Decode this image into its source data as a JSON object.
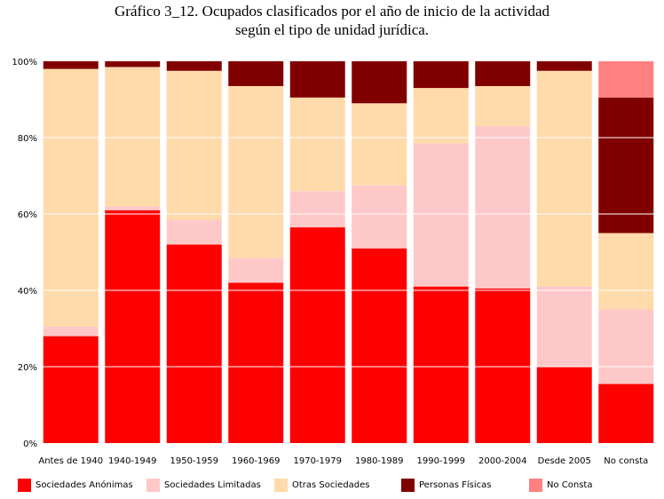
{
  "chart_data": {
    "type": "bar",
    "stacked": true,
    "normalized": true,
    "title": "Gráfico 3_12. Ocupados clasificados por el año de inicio de la actividad",
    "subtitle": "según el tipo de unidad jurídica.",
    "categories": [
      "Antes de 1940",
      "1940-1949",
      "1950-1959",
      "1960-1969",
      "1970-1979",
      "1980-1989",
      "1990-1999",
      "2000-2004",
      "Desde 2005",
      "No consta"
    ],
    "ylim": [
      0,
      100
    ],
    "yticks": [
      "0%",
      "20%",
      "40%",
      "60%",
      "80%",
      "100%"
    ],
    "grid": true,
    "legend_position": "bottom",
    "series": [
      {
        "name": "Sociedades Anónimas",
        "color": "#ff0000",
        "values": [
          28,
          61,
          52,
          42,
          56.5,
          51,
          41,
          40.5,
          20,
          15.5
        ]
      },
      {
        "name": "Sociedades Limitadas",
        "color": "#ffc8c8",
        "values": [
          2.5,
          1,
          6.5,
          6.5,
          9.5,
          16.5,
          37.5,
          42.5,
          21,
          19.5
        ]
      },
      {
        "name": "Otras Sociedades",
        "color": "#ffdaaa",
        "values": [
          67.5,
          36.5,
          39,
          45,
          24.5,
          21.5,
          14.5,
          10.5,
          56.5,
          20
        ]
      },
      {
        "name": "Personas Físicas",
        "color": "#800000",
        "values": [
          2,
          1.5,
          2.5,
          6.5,
          9.5,
          11,
          7,
          6.5,
          2.5,
          35.5
        ]
      },
      {
        "name": "No Consta",
        "color": "#ff8080",
        "values": [
          0,
          0,
          0,
          0,
          0,
          0,
          0,
          0,
          0,
          9.5
        ]
      }
    ]
  }
}
